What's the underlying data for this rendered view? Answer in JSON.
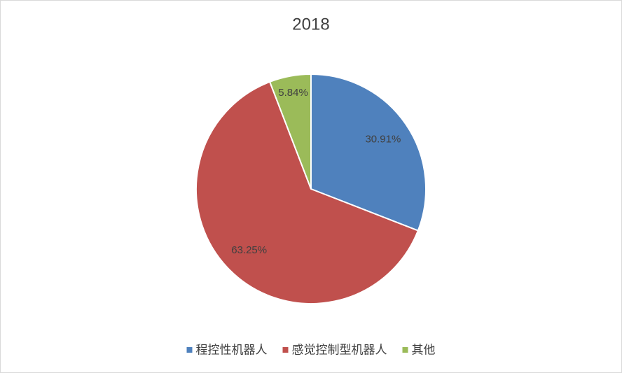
{
  "chart_data": {
    "type": "pie",
    "title": "2018",
    "categories": [
      "程控性机器人",
      "感觉控制型机器人",
      "其他"
    ],
    "values": [
      30.91,
      63.25,
      5.84
    ],
    "value_labels": [
      "30.91%",
      "63.25%",
      "5.84%"
    ],
    "colors": [
      "#4f81bd",
      "#c0504d",
      "#9bbb59"
    ],
    "legend": "bottom"
  }
}
